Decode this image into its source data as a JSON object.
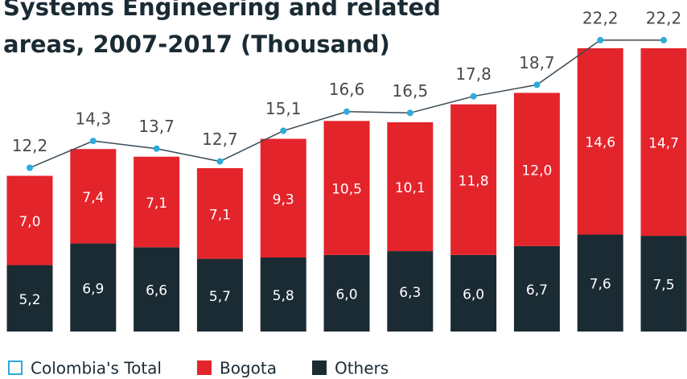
{
  "chart_data": {
    "type": "bar",
    "stacked": true,
    "title": "Systems Engineering and related areas, 2007-2017 (Thousand)",
    "series": [
      {
        "name": "Colombia's Total",
        "type": "line",
        "color": "#2eaadc",
        "line_color": "#3b4a54",
        "values": [
          12.2,
          14.3,
          13.7,
          12.7,
          15.1,
          16.6,
          16.5,
          17.8,
          18.7,
          22.2,
          22.2
        ],
        "value_labels": [
          "12,2",
          "14,3",
          "13,7",
          "12,7",
          "15,1",
          "16,6",
          "16,5",
          "17,8",
          "18,7",
          "22,2",
          "22,2"
        ]
      },
      {
        "name": "Bogota",
        "type": "bar",
        "color": "#e4242b",
        "values": [
          7.0,
          7.4,
          7.1,
          7.1,
          9.3,
          10.5,
          10.1,
          11.8,
          12.0,
          14.6,
          14.7
        ],
        "value_labels": [
          "7,0",
          "7,4",
          "7,1",
          "7,1",
          "9,3",
          "10,5",
          "10,1",
          "11,8",
          "12,0",
          "14,6",
          "14,7"
        ]
      },
      {
        "name": "Others",
        "type": "bar",
        "color": "#1b2b34",
        "values": [
          5.2,
          6.9,
          6.6,
          5.7,
          5.8,
          6.0,
          6.3,
          6.0,
          6.7,
          7.6,
          7.5
        ],
        "value_labels": [
          "5,2",
          "6,9",
          "6,6",
          "5,7",
          "5,8",
          "6,0",
          "6,3",
          "6,0",
          "6,7",
          "7,6",
          "7,5"
        ]
      }
    ]
  }
}
